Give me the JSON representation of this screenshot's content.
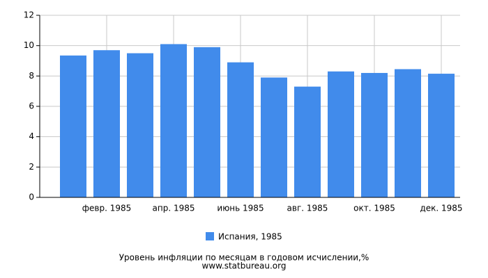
{
  "chart_data": {
    "type": "bar",
    "title": "Уровень инфляции по месяцам в годовом исчислении,%",
    "subtitle": "www.statbureau.org",
    "categories": [
      null,
      "февр. 1985",
      null,
      "апр. 1985",
      null,
      "июнь 1985",
      null,
      "авг. 1985",
      null,
      "окт. 1985",
      null,
      "дек. 1985"
    ],
    "series": [
      {
        "name": "Испания, 1985",
        "color": "#418beb",
        "values": [
          9.35,
          9.7,
          9.5,
          10.1,
          9.9,
          8.9,
          7.9,
          7.3,
          8.3,
          8.2,
          8.45,
          8.15
        ]
      }
    ],
    "ylim": [
      0,
      12
    ],
    "yticks": [
      0,
      2,
      4,
      6,
      8,
      10,
      12
    ],
    "grid": true
  }
}
